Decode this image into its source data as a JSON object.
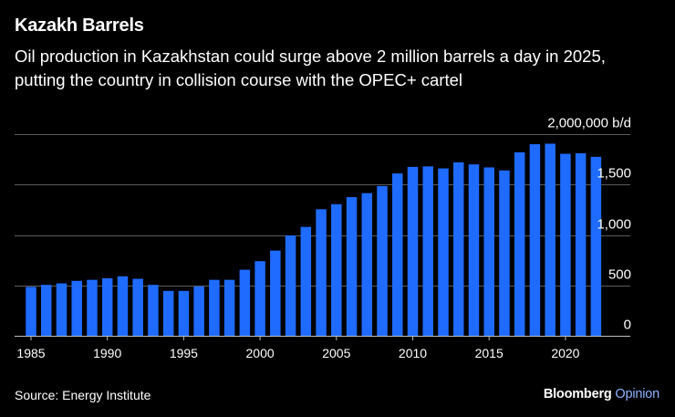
{
  "header": {
    "title": "Kazakh Barrels",
    "subtitle": "Oil production in Kazakhstan could surge above 2 million barrels a day in 2025, putting the country in collision course with the OPEC+ cartel"
  },
  "footer": {
    "source": "Source: Energy Institute",
    "brand_name": "Bloomberg",
    "brand_suffix": "Opinion"
  },
  "colors": {
    "background": "#000000",
    "bar": "#1f6bff",
    "grid": "#5a5a5a",
    "text": "#ffffff",
    "brand_accent": "#8fb1ff"
  },
  "chart_data": {
    "type": "bar",
    "title": "Kazakh Barrels",
    "xlabel": "",
    "ylabel": "b/d",
    "ylim": [
      0,
      2000000
    ],
    "y_ticks": [
      0,
      500000,
      1000000,
      1500000,
      2000000
    ],
    "y_tick_labels": [
      "0",
      "500",
      "1,000",
      "1,500",
      "2,000,000 b/d"
    ],
    "x_ticks": [
      1985,
      1990,
      1995,
      2000,
      2005,
      2010,
      2015,
      2020
    ],
    "x_tick_labels": [
      "1985",
      "1990",
      "1995",
      "2000",
      "2005",
      "2010",
      "2015",
      "2020"
    ],
    "grid": true,
    "categories": [
      1985,
      1986,
      1987,
      1988,
      1989,
      1990,
      1991,
      1992,
      1993,
      1994,
      1995,
      1996,
      1997,
      1998,
      1999,
      2000,
      2001,
      2002,
      2003,
      2004,
      2005,
      2006,
      2007,
      2008,
      2009,
      2010,
      2011,
      2012,
      2013,
      2014,
      2015,
      2016,
      2017,
      2018,
      2019,
      2020,
      2021,
      2022
    ],
    "values": [
      485000,
      505000,
      520000,
      545000,
      555000,
      570000,
      590000,
      565000,
      505000,
      445000,
      445000,
      490000,
      555000,
      555000,
      655000,
      740000,
      845000,
      995000,
      1080000,
      1255000,
      1305000,
      1375000,
      1415000,
      1485000,
      1610000,
      1675000,
      1680000,
      1660000,
      1720000,
      1700000,
      1670000,
      1640000,
      1820000,
      1900000,
      1905000,
      1805000,
      1810000,
      1775000
    ]
  }
}
